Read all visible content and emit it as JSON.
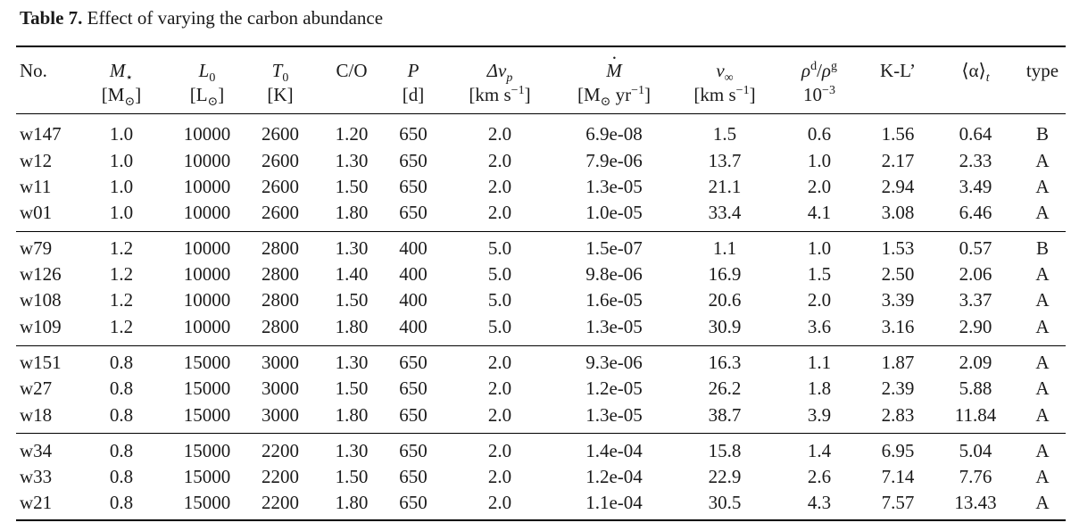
{
  "caption": {
    "label": "Table 7.",
    "text": "Effect of varying the carbon abundance"
  },
  "header": {
    "no": "No.",
    "mass_sym": "M",
    "mass_sub": "⋆",
    "mass_unit": "[M",
    "mass_unit_sub": "⊙",
    "mass_unit_end": "]",
    "lum_sym": "L",
    "lum_sub": "0",
    "lum_unit": "[L",
    "lum_unit_sub": "⊙",
    "lum_unit_end": "]",
    "temp_sym": "T",
    "temp_sub": "0",
    "temp_unit": "[K]",
    "co": "C/O",
    "period_sym": "P",
    "period_unit": "[d]",
    "dv_sym": "Δv",
    "dv_sub": "p",
    "dv_unit": "[km s",
    "dv_unit_sup": "−1",
    "dv_unit_end": "]",
    "mdot_sym": "M",
    "mdot_unit": "[M",
    "mdot_unit_sub": "⊙",
    "mdot_unit_mid": " yr",
    "mdot_unit_sup": "−1",
    "mdot_unit_end": "]",
    "vinf_sym": "v",
    "vinf_sub": "∞",
    "vinf_unit": "[km s",
    "vinf_unit_sup": "−1",
    "vinf_unit_end": "]",
    "rho_sym1": "ρ",
    "rho_sup1": "d",
    "rho_mid": "/",
    "rho_sym2": "ρ",
    "rho_sup2": "g",
    "rho_unit": "10",
    "rho_unit_sup": "−3",
    "kl": "K-L’",
    "alpha_sym": "⟨α⟩",
    "alpha_sub": "t",
    "type": "type"
  },
  "rows": [
    [
      "w147",
      "1.0",
      "10000",
      "2600",
      "1.20",
      "650",
      "2.0",
      "6.9e-08",
      "1.5",
      "0.6",
      "1.56",
      "0.64",
      "B"
    ],
    [
      "w12",
      "1.0",
      "10000",
      "2600",
      "1.30",
      "650",
      "2.0",
      "7.9e-06",
      "13.7",
      "1.0",
      "2.17",
      "2.33",
      "A"
    ],
    [
      "w11",
      "1.0",
      "10000",
      "2600",
      "1.50",
      "650",
      "2.0",
      "1.3e-05",
      "21.1",
      "2.0",
      "2.94",
      "3.49",
      "A"
    ],
    [
      "w01",
      "1.0",
      "10000",
      "2600",
      "1.80",
      "650",
      "2.0",
      "1.0e-05",
      "33.4",
      "4.1",
      "3.08",
      "6.46",
      "A"
    ],
    [
      "w79",
      "1.2",
      "10000",
      "2800",
      "1.30",
      "400",
      "5.0",
      "1.5e-07",
      "1.1",
      "1.0",
      "1.53",
      "0.57",
      "B"
    ],
    [
      "w126",
      "1.2",
      "10000",
      "2800",
      "1.40",
      "400",
      "5.0",
      "9.8e-06",
      "16.9",
      "1.5",
      "2.50",
      "2.06",
      "A"
    ],
    [
      "w108",
      "1.2",
      "10000",
      "2800",
      "1.50",
      "400",
      "5.0",
      "1.6e-05",
      "20.6",
      "2.0",
      "3.39",
      "3.37",
      "A"
    ],
    [
      "w109",
      "1.2",
      "10000",
      "2800",
      "1.80",
      "400",
      "5.0",
      "1.3e-05",
      "30.9",
      "3.6",
      "3.16",
      "2.90",
      "A"
    ],
    [
      "w151",
      "0.8",
      "15000",
      "3000",
      "1.30",
      "650",
      "2.0",
      "9.3e-06",
      "16.3",
      "1.1",
      "1.87",
      "2.09",
      "A"
    ],
    [
      "w27",
      "0.8",
      "15000",
      "3000",
      "1.50",
      "650",
      "2.0",
      "1.2e-05",
      "26.2",
      "1.8",
      "2.39",
      "5.88",
      "A"
    ],
    [
      "w18",
      "0.8",
      "15000",
      "3000",
      "1.80",
      "650",
      "2.0",
      "1.3e-05",
      "38.7",
      "3.9",
      "2.83",
      "11.84",
      "A"
    ],
    [
      "w34",
      "0.8",
      "15000",
      "2200",
      "1.30",
      "650",
      "2.0",
      "1.4e-04",
      "15.8",
      "1.4",
      "6.95",
      "5.04",
      "A"
    ],
    [
      "w33",
      "0.8",
      "15000",
      "2200",
      "1.50",
      "650",
      "2.0",
      "1.2e-04",
      "22.9",
      "2.6",
      "7.14",
      "7.76",
      "A"
    ],
    [
      "w21",
      "0.8",
      "15000",
      "2200",
      "1.80",
      "650",
      "2.0",
      "1.1e-04",
      "30.5",
      "4.3",
      "7.57",
      "13.43",
      "A"
    ]
  ]
}
